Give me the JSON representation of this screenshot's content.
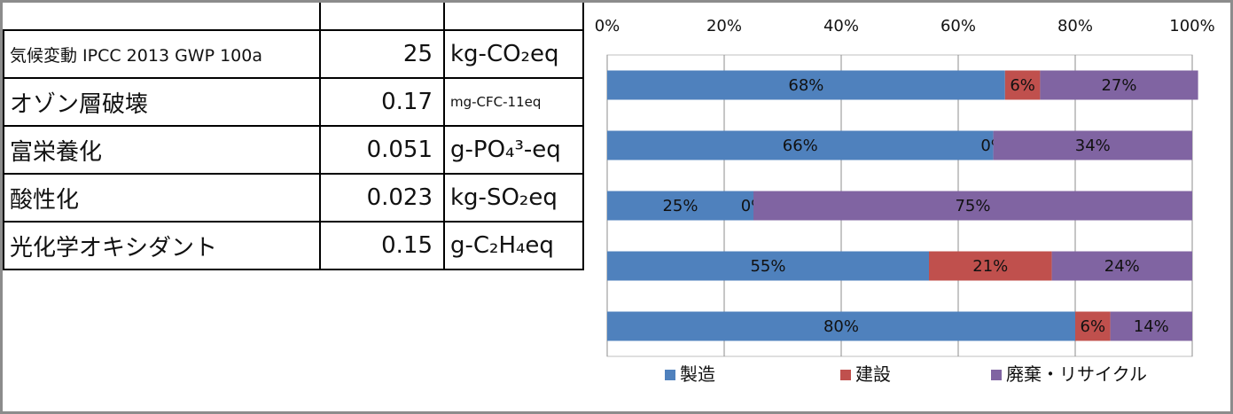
{
  "table": {
    "rows": [
      {
        "name": "気候変動 IPCC 2013 GWP 100a",
        "value": "25",
        "unit": "kg-CO₂eq"
      },
      {
        "name": "オゾン層破壊",
        "value": "0.17",
        "unit": "mg-CFC-11eq"
      },
      {
        "name": "富栄養化",
        "value": "0.051",
        "unit": "g-PO₄³-eq"
      },
      {
        "name": "酸性化",
        "value": "0.023",
        "unit": "kg-SO₂eq"
      },
      {
        "name": "光化学オキシダント",
        "value": "0.15",
        "unit": "g-C₂H₄eq"
      }
    ]
  },
  "chart_data": {
    "type": "bar",
    "orientation": "horizontal",
    "stacked": "percent",
    "x_ticks": [
      "0%",
      "20%",
      "40%",
      "60%",
      "80%",
      "100%"
    ],
    "xlim": [
      0,
      100
    ],
    "grid": true,
    "legend_position": "bottom",
    "categories": [
      "気候変動 IPCC 2013 GWP 100a",
      "オゾン層破壊",
      "富栄養化",
      "酸性化",
      "光化学オキシダント"
    ],
    "series": [
      {
        "name": "製造",
        "color": "#4f81bd",
        "values": [
          68,
          66,
          25,
          55,
          80
        ],
        "labels": [
          "68%",
          "66%",
          "25%",
          "55%",
          "80%"
        ]
      },
      {
        "name": "建設",
        "color": "#c0504d",
        "values": [
          6,
          0,
          0,
          21,
          6
        ],
        "labels": [
          "6%",
          "0%",
          "0%",
          "21%",
          "6%"
        ]
      },
      {
        "name": "廃棄・リサイクル",
        "color": "#8064a2",
        "values": [
          27,
          34,
          75,
          24,
          14
        ],
        "labels": [
          "27%",
          "34%",
          "75%",
          "24%",
          "14%"
        ]
      }
    ]
  }
}
